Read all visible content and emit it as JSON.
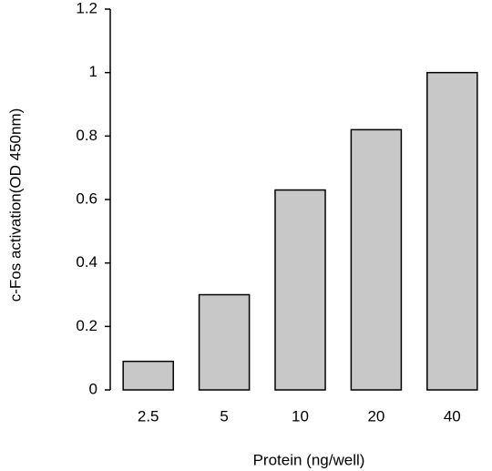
{
  "chart_data": {
    "type": "bar",
    "x_label": "Protein (ng/well)",
    "y_label": "c-Fos activation(OD 450nm)",
    "categories": [
      "2.5",
      "5",
      "10",
      "20",
      "40"
    ],
    "values": [
      0.09,
      0.3,
      0.63,
      0.82,
      1.0
    ],
    "color": "#c8c8c8",
    "ylim": [
      0,
      1.2
    ],
    "yticks": [
      0,
      0.2,
      0.4,
      0.6,
      0.8,
      1,
      1.2
    ],
    "grid": false
  }
}
